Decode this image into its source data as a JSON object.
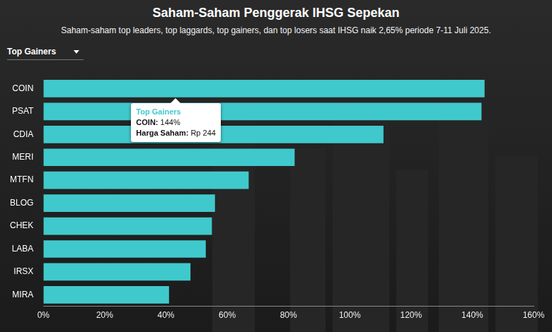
{
  "chart_data": {
    "type": "bar",
    "orientation": "horizontal",
    "title": "Saham-Saham Penggerak IHSG Sepekan",
    "subtitle": "Saham-saham top leaders, top laggards, top gainers, dan top losers saat IHSG naik 2,65% periode 7-11 Juli 2025.",
    "selector": "Top Gainers",
    "categories": [
      "COIN",
      "PSAT",
      "CDIA",
      "MERI",
      "MTFN",
      "BLOG",
      "CHEK",
      "LABA",
      "IRSX",
      "MIRA"
    ],
    "values": [
      144,
      143,
      111,
      82,
      67,
      56,
      55,
      53,
      48,
      41
    ],
    "color": "#40c9cc",
    "xlim": [
      0,
      160
    ],
    "xticks": [
      {
        "value": 0,
        "label": "0%"
      },
      {
        "value": 20,
        "label": "20%"
      },
      {
        "value": 40,
        "label": "40%"
      },
      {
        "value": 60,
        "label": "60%"
      },
      {
        "value": 80,
        "label": "80%"
      },
      {
        "value": 100,
        "label": "100%"
      },
      {
        "value": 120,
        "label": "120%"
      },
      {
        "value": 140,
        "label": "140%"
      },
      {
        "value": 160,
        "label": "160%"
      }
    ],
    "grid": false,
    "tooltip": {
      "category": "COIN",
      "title": "Top Gainers",
      "rows": [
        {
          "label": "COIN:",
          "text": "144%"
        },
        {
          "label": "Harga Saham:",
          "text": "Rp 244"
        }
      ]
    }
  }
}
